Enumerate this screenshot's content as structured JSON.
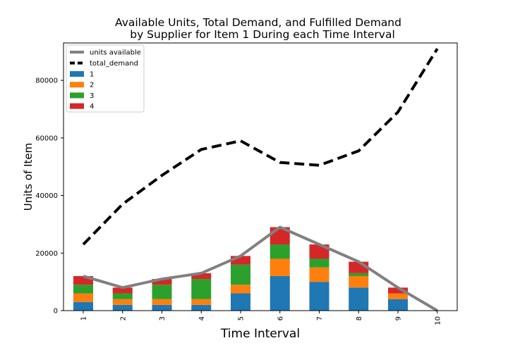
{
  "chart_data": {
    "type": "bar",
    "stacked": true,
    "title_lines": [
      "Available Units, Total Demand, and Fulfilled Demand",
      "by Supplier for Item 1 During each Time Interval"
    ],
    "xlabel": "Time Interval",
    "ylabel": "Units of Item",
    "categories": [
      "1",
      "2",
      "3",
      "4",
      "5",
      "6",
      "7",
      "8",
      "9",
      "10"
    ],
    "ylim": [
      0,
      93000
    ],
    "yticks": [
      0,
      20000,
      40000,
      60000,
      80000
    ],
    "ytick_labels": [
      "0",
      "20000",
      "40000",
      "60000",
      "80000"
    ],
    "legend_position": "top-left",
    "grid": false,
    "bar_series": [
      {
        "name": "1",
        "color": "#1f77b4",
        "values": [
          3000,
          2000,
          2000,
          2000,
          6000,
          12000,
          10000,
          8000,
          4000,
          0
        ]
      },
      {
        "name": "2",
        "color": "#ff7f0e",
        "values": [
          3000,
          2000,
          2000,
          2000,
          3000,
          6000,
          5000,
          4000,
          2000,
          0
        ]
      },
      {
        "name": "3",
        "color": "#2ca02c",
        "values": [
          3000,
          2000,
          5000,
          7000,
          7000,
          5000,
          3000,
          1000,
          0,
          0
        ]
      },
      {
        "name": "4",
        "color": "#d62728",
        "values": [
          3000,
          2000,
          2000,
          2000,
          3000,
          6000,
          5000,
          4000,
          2000,
          0
        ]
      }
    ],
    "line_series": [
      {
        "name": "units available",
        "color": "#808080",
        "style": "solid",
        "values": [
          12000,
          8000,
          11000,
          13000,
          19000,
          29000,
          23000,
          17000,
          8000,
          0
        ]
      },
      {
        "name": "total_demand",
        "color": "#000000",
        "style": "dashed",
        "values": [
          23000,
          37000,
          47000,
          56000,
          59000,
          51500,
          50500,
          55500,
          69000,
          91000
        ]
      }
    ]
  }
}
